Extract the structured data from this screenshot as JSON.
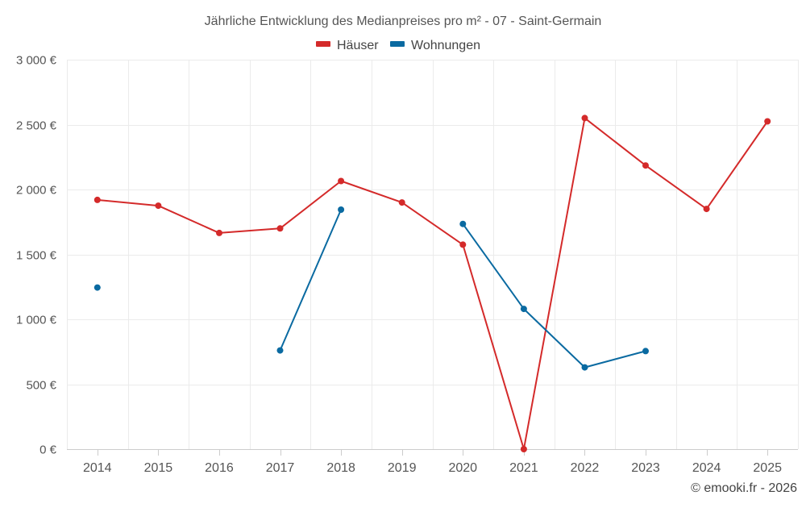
{
  "chart_data": {
    "type": "line",
    "title": "Jährliche Entwicklung des Medianpreises pro m² - 07 - Saint-Germain",
    "xlabel": "",
    "ylabel": "",
    "x": [
      "2014",
      "2015",
      "2016",
      "2017",
      "2018",
      "2019",
      "2020",
      "2021",
      "2022",
      "2023",
      "2024",
      "2025"
    ],
    "ylim": [
      0,
      3000
    ],
    "yticks": [
      0,
      500,
      1000,
      1500,
      2000,
      2500,
      3000
    ],
    "ytick_labels": [
      "0 €",
      "500 €",
      "1 000 €",
      "1 500 €",
      "2 000 €",
      "2 500 €",
      "3 000 €"
    ],
    "grid": true,
    "legend_position": "top-center",
    "series": [
      {
        "name": "Häuser",
        "color": "#d42a2a",
        "values": [
          1920,
          1875,
          1665,
          1700,
          2065,
          1900,
          1575,
          0,
          2550,
          2185,
          1850,
          2525
        ]
      },
      {
        "name": "Wohnungen",
        "color": "#0a6aa1",
        "values": [
          1245,
          null,
          null,
          760,
          1845,
          null,
          1735,
          1080,
          630,
          755,
          null,
          null
        ]
      }
    ]
  },
  "footer": {
    "credit": "© emooki.fr - 2026"
  }
}
